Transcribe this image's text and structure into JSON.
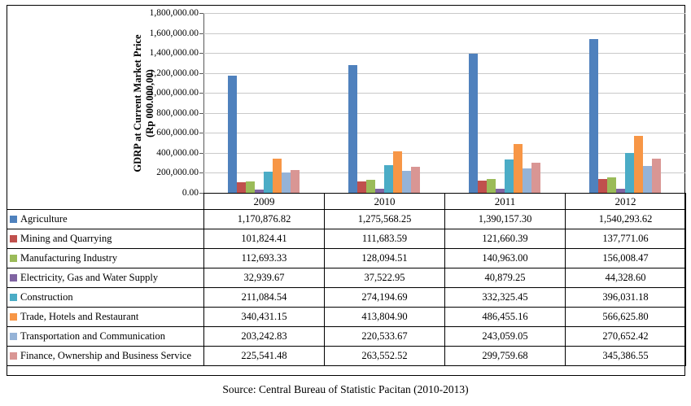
{
  "chart_data": {
    "type": "bar",
    "title": "",
    "categories": [
      "2009",
      "2010",
      "2011",
      "2012"
    ],
    "series": [
      {
        "name": "Agriculture",
        "color": "#4F81BD",
        "values": [
          1170876.82,
          1275568.25,
          1390157.3,
          1540293.62
        ]
      },
      {
        "name": "Mining and Quarrying",
        "color": "#C0504D",
        "values": [
          101824.41,
          111683.59,
          121660.39,
          137771.06
        ]
      },
      {
        "name": "Manufacturing Industry",
        "color": "#9BBB59",
        "values": [
          112693.33,
          128094.51,
          140963.0,
          156008.47
        ]
      },
      {
        "name": "Electricity, Gas and Water Supply",
        "color": "#8064A2",
        "values": [
          32939.67,
          37522.95,
          40879.25,
          44328.6
        ]
      },
      {
        "name": "Construction",
        "color": "#4BACC6",
        "values": [
          211084.54,
          274194.69,
          332325.45,
          396031.18
        ]
      },
      {
        "name": "Trade, Hotels and Restaurant",
        "color": "#F79646",
        "values": [
          340431.15,
          413804.9,
          486455.16,
          566625.8
        ]
      },
      {
        "name": "Transportation and Communication",
        "color": "#95B3D7",
        "values": [
          203242.83,
          220533.67,
          243059.05,
          270652.42
        ]
      },
      {
        "name": "Finance, Ownership and Business Service",
        "color": "#D99694",
        "values": [
          225541.48,
          263552.52,
          299759.68,
          345386.55
        ]
      }
    ],
    "xlabel": "",
    "ylabel": "GDRP at Current Market Price (Rp 000.000,00)",
    "ylabel_lines": [
      "GDRP at Current Market Price",
      "(Rp 000.000,00)"
    ],
    "ylim": [
      0,
      1800000
    ],
    "ytick_step": 200000,
    "ytick_labels_top_down": [
      "1,800,000.00",
      "1,600,000.00",
      "1,400,000.00",
      "1,200,000.00",
      "1,000,000.00",
      "800,000.00",
      "600,000.00",
      "400,000.00",
      "200,000.00",
      "0.00"
    ],
    "grid": true,
    "legend_position": "left-of-data-table"
  },
  "source_caption": "Source: Central Bureau of Statistic Pacitan (2010-2013)"
}
